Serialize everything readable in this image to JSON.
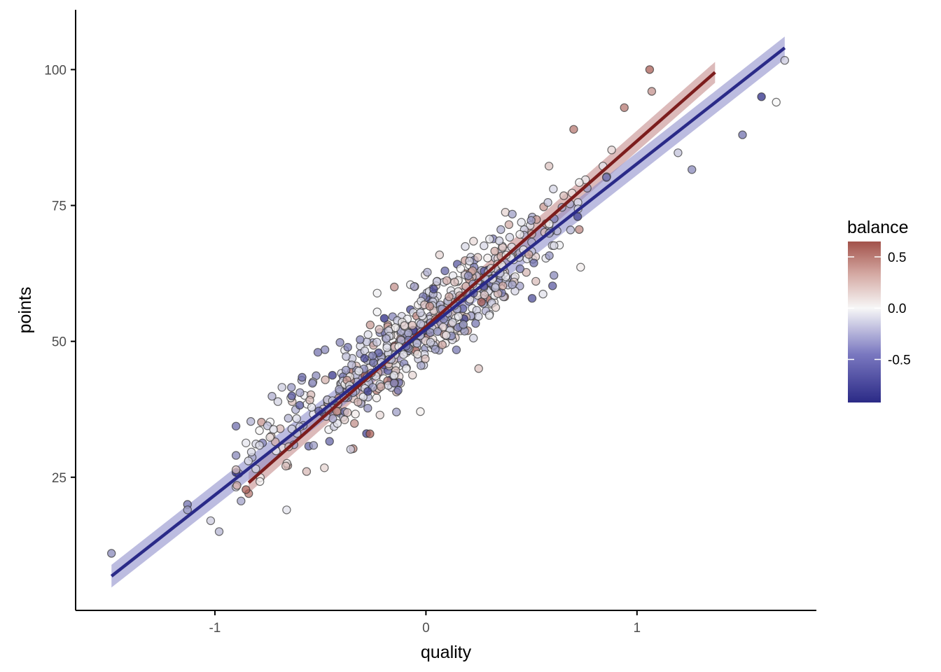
{
  "chart_data": {
    "type": "scatter",
    "xlabel": "quality",
    "ylabel": "points",
    "xlim": [
      -1.66,
      1.85
    ],
    "ylim": [
      0.5,
      111
    ],
    "x_ticks": [
      -1,
      0,
      1
    ],
    "x_tick_labels": [
      "-1",
      "0",
      "1"
    ],
    "y_ticks": [
      25,
      50,
      75,
      100
    ],
    "y_tick_labels": [
      "25",
      "50",
      "75",
      "100"
    ],
    "grid": false,
    "legend": {
      "title": "balance",
      "placement": "right",
      "type": "colorbar",
      "range": [
        -0.92,
        0.65
      ],
      "ticks": [
        0.5,
        0.0,
        -0.5
      ],
      "tick_labels": [
        "0.5",
        "0.0",
        "-0.5"
      ],
      "colors": {
        "low": "#2b2a86",
        "mid": "#f7f7f7",
        "high": "#a2524a"
      }
    },
    "fit_lines": [
      {
        "name": "positive balance",
        "color": "#7c1d1d",
        "band_color": "#c58c8c",
        "x": [
          -0.84,
          1.37
        ],
        "y": [
          24,
          99.5
        ],
        "band_halfwidth": 1.2
      },
      {
        "name": "negative balance",
        "color": "#2a2a88",
        "band_color": "#8f8fcc",
        "x": [
          -1.49,
          1.7
        ],
        "y": [
          6.8,
          104
        ],
        "band_halfwidth": 1.3
      }
    ],
    "points_sample": [
      {
        "x": -1.49,
        "y": 11,
        "balance": -0.5
      },
      {
        "x": -1.13,
        "y": 20,
        "balance": -0.6
      },
      {
        "x": -1.13,
        "y": 19,
        "balance": -0.4
      },
      {
        "x": -1.02,
        "y": 17,
        "balance": -0.2
      },
      {
        "x": -0.98,
        "y": 15,
        "balance": -0.3
      },
      {
        "x": -0.66,
        "y": 19,
        "balance": -0.1
      },
      {
        "x": -0.84,
        "y": 22,
        "balance": 0.5
      },
      {
        "x": 1.06,
        "y": 100,
        "balance": 0.6
      },
      {
        "x": 1.07,
        "y": 96,
        "balance": 0.4
      },
      {
        "x": 0.94,
        "y": 93,
        "balance": 0.5
      },
      {
        "x": 1.7,
        "y": 101.7,
        "balance": -0.2
      },
      {
        "x": 1.59,
        "y": 95,
        "balance": -0.9
      },
      {
        "x": 1.5,
        "y": 88,
        "balance": -0.6
      },
      {
        "x": 1.66,
        "y": 94,
        "balance": 0.0
      },
      {
        "x": 1.26,
        "y": 81.6,
        "balance": -0.5
      },
      {
        "x": 0.6,
        "y": 60.2,
        "balance": -0.7
      },
      {
        "x": -0.14,
        "y": 37,
        "balance": -0.4
      },
      {
        "x": 0.25,
        "y": 45,
        "balance": 0.2
      },
      {
        "x": 0.7,
        "y": 89,
        "balance": 0.5
      },
      {
        "x": -0.15,
        "y": 60,
        "balance": 0.4
      }
    ]
  }
}
